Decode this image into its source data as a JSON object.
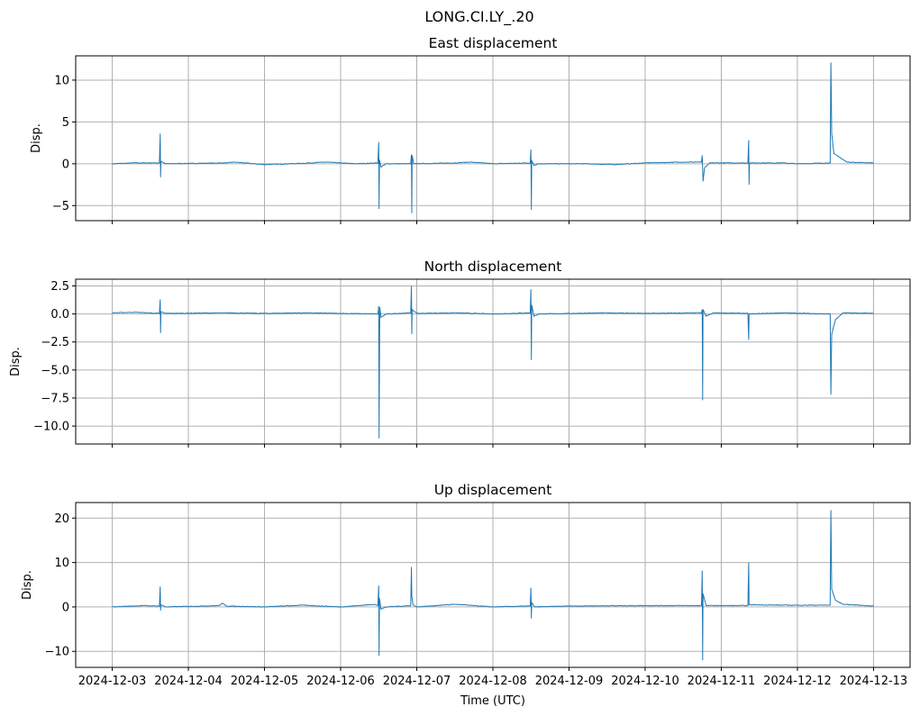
{
  "chart_data": [
    {
      "type": "line",
      "suptitle": "LONG.CI.LY_.20",
      "title": "East displacement",
      "xlabel": "",
      "ylabel": "Disp.",
      "x_unit": "days since 2024-12-03 00:00 UTC",
      "xlim": [
        -0.48,
        10.48
      ],
      "ylim": [
        -6.8,
        12.9
      ],
      "yticks": [
        -5,
        0,
        5,
        10
      ],
      "yticklabels": [
        "−5",
        "0",
        "5",
        "10"
      ],
      "grid": true,
      "points": [
        [
          0,
          0
        ],
        [
          0.3,
          0.1
        ],
        [
          0.62,
          0.1
        ],
        [
          0.63,
          3.6
        ],
        [
          0.635,
          -1.6
        ],
        [
          0.64,
          0.3
        ],
        [
          0.7,
          0
        ],
        [
          1.5,
          0.1
        ],
        [
          1.6,
          0.2
        ],
        [
          2,
          -0.1
        ],
        [
          2.5,
          0.05
        ],
        [
          2.8,
          0.2
        ],
        [
          3.2,
          0
        ],
        [
          3.49,
          0.1
        ],
        [
          3.5,
          2.6
        ],
        [
          3.505,
          -5.4
        ],
        [
          3.51,
          0.5
        ],
        [
          3.53,
          -0.4
        ],
        [
          3.6,
          0
        ],
        [
          3.92,
          0
        ],
        [
          3.93,
          1.1
        ],
        [
          3.935,
          -5.9
        ],
        [
          3.94,
          1
        ],
        [
          3.96,
          0
        ],
        [
          4.5,
          0.1
        ],
        [
          4.7,
          0.2
        ],
        [
          5,
          0
        ],
        [
          5.49,
          0.1
        ],
        [
          5.5,
          1.7
        ],
        [
          5.505,
          -5.5
        ],
        [
          5.51,
          0.4
        ],
        [
          5.54,
          -0.2
        ],
        [
          5.6,
          0
        ],
        [
          6.2,
          0
        ],
        [
          6.6,
          -0.1
        ],
        [
          7,
          0.1
        ],
        [
          7.5,
          0.2
        ],
        [
          7.74,
          0.2
        ],
        [
          7.75,
          1
        ],
        [
          7.76,
          -2.1
        ],
        [
          7.78,
          -0.5
        ],
        [
          7.85,
          0.1
        ],
        [
          8.35,
          0.1
        ],
        [
          8.36,
          2.8
        ],
        [
          8.365,
          -2.5
        ],
        [
          8.37,
          0.1
        ],
        [
          8.8,
          0.1
        ],
        [
          9,
          0
        ],
        [
          9.43,
          0.1
        ],
        [
          9.44,
          12.1
        ],
        [
          9.445,
          8
        ],
        [
          9.45,
          3.6
        ],
        [
          9.48,
          1.2
        ],
        [
          9.55,
          0.8
        ],
        [
          9.65,
          0.2
        ],
        [
          10,
          0.1
        ]
      ]
    },
    {
      "type": "line",
      "title": "North displacement",
      "xlabel": "",
      "ylabel": "Disp.",
      "x_unit": "days since 2024-12-03 00:00 UTC",
      "xlim": [
        -0.48,
        10.48
      ],
      "ylim": [
        -11.6,
        3.1
      ],
      "yticks": [
        2.5,
        0,
        -2.5,
        -5,
        -7.5,
        -10
      ],
      "yticklabels": [
        "2.5",
        "0.0",
        "−2.5",
        "−5.0",
        "−7.5",
        "−10.0"
      ],
      "grid": true,
      "points": [
        [
          0,
          0.1
        ],
        [
          0.3,
          0.15
        ],
        [
          0.62,
          0.05
        ],
        [
          0.63,
          1.3
        ],
        [
          0.635,
          -1.7
        ],
        [
          0.64,
          0.2
        ],
        [
          0.7,
          0.05
        ],
        [
          1.5,
          0.1
        ],
        [
          2,
          0.05
        ],
        [
          2.5,
          0.1
        ],
        [
          3,
          0.05
        ],
        [
          3.49,
          0
        ],
        [
          3.5,
          0.7
        ],
        [
          3.505,
          -11.1
        ],
        [
          3.51,
          -4
        ],
        [
          3.515,
          0.6
        ],
        [
          3.53,
          -0.3
        ],
        [
          3.6,
          0
        ],
        [
          3.92,
          0.1
        ],
        [
          3.93,
          2.5
        ],
        [
          3.935,
          -1.8
        ],
        [
          3.94,
          0.4
        ],
        [
          4,
          0.05
        ],
        [
          4.5,
          0.1
        ],
        [
          5,
          0
        ],
        [
          5.49,
          0.1
        ],
        [
          5.5,
          2.2
        ],
        [
          5.505,
          -4.1
        ],
        [
          5.51,
          0.8
        ],
        [
          5.54,
          -0.2
        ],
        [
          5.6,
          0
        ],
        [
          6.5,
          0.1
        ],
        [
          7,
          0.05
        ],
        [
          7.74,
          0.1
        ],
        [
          7.75,
          0.4
        ],
        [
          7.755,
          -7.7
        ],
        [
          7.76,
          0.4
        ],
        [
          7.8,
          -0.2
        ],
        [
          7.9,
          0.1
        ],
        [
          8.35,
          0.05
        ],
        [
          8.36,
          -2.3
        ],
        [
          8.365,
          0
        ],
        [
          8.8,
          0.1
        ],
        [
          9.43,
          0
        ],
        [
          9.44,
          -7.2
        ],
        [
          9.45,
          -1.8
        ],
        [
          9.5,
          -0.5
        ],
        [
          9.6,
          0.1
        ],
        [
          10,
          0.05
        ]
      ]
    },
    {
      "type": "line",
      "title": "Up displacement",
      "xlabel": "Time (UTC)",
      "ylabel": "Disp.",
      "x_unit": "days since 2024-12-03 00:00 UTC",
      "xlim": [
        -0.48,
        10.48
      ],
      "ylim": [
        -13.6,
        23.5
      ],
      "yticks": [
        20,
        10,
        0,
        -10
      ],
      "yticklabels": [
        "20",
        "10",
        "0",
        "−10"
      ],
      "grid": true,
      "xticklabels": [
        "2024-12-03",
        "2024-12-04",
        "2024-12-05",
        "2024-12-06",
        "2024-12-07",
        "2024-12-08",
        "2024-12-09",
        "2024-12-10",
        "2024-12-11",
        "2024-12-12",
        "2024-12-13"
      ],
      "points": [
        [
          0,
          0
        ],
        [
          0.4,
          0.3
        ],
        [
          0.62,
          0.2
        ],
        [
          0.63,
          4.6
        ],
        [
          0.635,
          -0.8
        ],
        [
          0.64,
          0.5
        ],
        [
          0.7,
          0
        ],
        [
          1.4,
          0.3
        ],
        [
          1.45,
          0.8
        ],
        [
          1.5,
          0.2
        ],
        [
          2,
          0
        ],
        [
          2.5,
          0.4
        ],
        [
          3,
          0
        ],
        [
          3.45,
          0.6
        ],
        [
          3.49,
          0.3
        ],
        [
          3.5,
          4.8
        ],
        [
          3.505,
          -11
        ],
        [
          3.51,
          2
        ],
        [
          3.53,
          -0.5
        ],
        [
          3.6,
          0
        ],
        [
          3.92,
          0.3
        ],
        [
          3.93,
          9
        ],
        [
          3.935,
          2.5
        ],
        [
          3.95,
          0.5
        ],
        [
          4,
          0
        ],
        [
          4.5,
          0.6
        ],
        [
          5,
          0
        ],
        [
          5.49,
          0.2
        ],
        [
          5.5,
          4.3
        ],
        [
          5.505,
          -2.6
        ],
        [
          5.51,
          1
        ],
        [
          5.55,
          0
        ],
        [
          6,
          0.2
        ],
        [
          7,
          0.3
        ],
        [
          7.74,
          0.3
        ],
        [
          7.75,
          8.2
        ],
        [
          7.755,
          -12
        ],
        [
          7.76,
          3
        ],
        [
          7.8,
          0.3
        ],
        [
          8.35,
          0.3
        ],
        [
          8.36,
          10
        ],
        [
          8.365,
          0.5
        ],
        [
          8.8,
          0.4
        ],
        [
          9.43,
          0.4
        ],
        [
          9.44,
          21.8
        ],
        [
          9.445,
          12
        ],
        [
          9.45,
          4
        ],
        [
          9.5,
          1.5
        ],
        [
          9.6,
          0.6
        ],
        [
          10,
          0.2
        ]
      ]
    }
  ]
}
